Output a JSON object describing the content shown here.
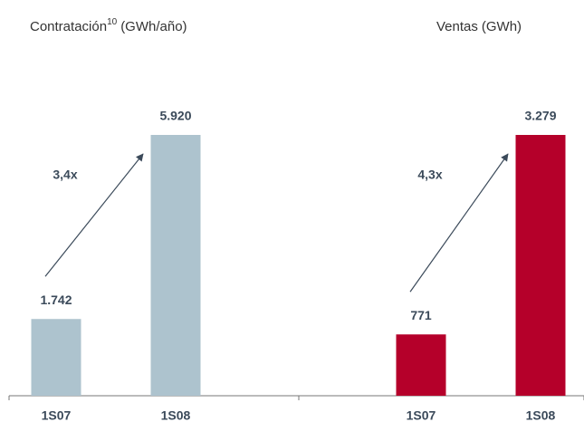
{
  "chart_data": [
    {
      "type": "bar",
      "title": "Contratación",
      "title_superscript": "10",
      "unit": "(GWh/año)",
      "categories": [
        "1S07",
        "1S08"
      ],
      "values": [
        1742,
        5920
      ],
      "value_labels": [
        "1.742",
        "5.920"
      ],
      "annotation": "3,4x",
      "color": "#adc3ce"
    },
    {
      "type": "bar",
      "title": "Ventas",
      "unit": "(GWh)",
      "categories": [
        "1S07",
        "1S08"
      ],
      "values": [
        771,
        3279
      ],
      "value_labels": [
        "771",
        "3.279"
      ],
      "annotation": "4,3x",
      "color": "#b5002a"
    }
  ]
}
